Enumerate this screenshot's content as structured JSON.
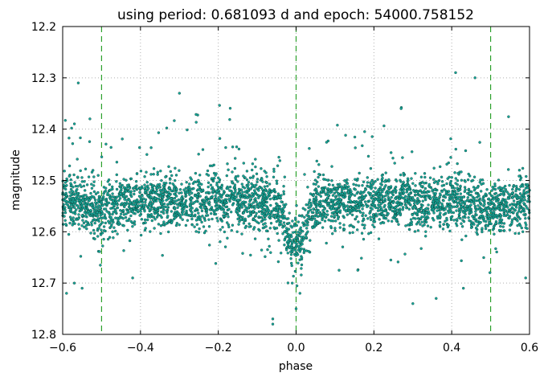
{
  "chart_data": {
    "type": "scatter",
    "title": "using period: 0.681093 d and epoch: 54000.758152",
    "xlabel": "phase",
    "ylabel": "magnitude",
    "xlim": [
      -0.6,
      0.6
    ],
    "ylim": [
      12.8,
      12.2
    ],
    "y_axis_inverted": true,
    "grid": true,
    "x_ticks": [
      -0.6,
      -0.4,
      -0.2,
      0.0,
      0.2,
      0.4,
      0.6
    ],
    "x_tick_labels": [
      "−0.6",
      "−0.4",
      "−0.2",
      "0.0",
      "0.2",
      "0.4",
      "0.6"
    ],
    "y_ticks": [
      12.2,
      12.3,
      12.4,
      12.5,
      12.6,
      12.7,
      12.8
    ],
    "y_tick_labels": [
      "12.2",
      "12.3",
      "12.4",
      "12.5",
      "12.6",
      "12.7",
      "12.8"
    ],
    "vertical_lines": [
      {
        "x": -0.5,
        "style": "dashed",
        "color": "#2ca02c"
      },
      {
        "x": 0.0,
        "style": "dashed",
        "color": "#2ca02c"
      },
      {
        "x": 0.5,
        "style": "dashed",
        "color": "#2ca02c"
      }
    ],
    "marker_color": "#17a89a",
    "marker_edge_color": "#0b3b33",
    "series_description": "light curve, baseline magnitude ~12.54, scatter ~0.03 mag, primary dip at phase 0 reaching ~12.63",
    "points": [
      [
        -0.58,
        12.53
      ],
      [
        -0.55,
        12.55
      ],
      [
        -0.52,
        12.51
      ],
      [
        -0.5,
        12.56
      ],
      [
        -0.47,
        12.54
      ],
      [
        -0.44,
        12.52
      ],
      [
        -0.41,
        12.55
      ],
      [
        -0.38,
        12.53
      ],
      [
        -0.35,
        12.54
      ],
      [
        -0.32,
        12.52
      ],
      [
        -0.29,
        12.56
      ],
      [
        -0.26,
        12.53
      ],
      [
        -0.23,
        12.54
      ],
      [
        -0.2,
        12.55
      ],
      [
        -0.17,
        12.53
      ],
      [
        -0.14,
        12.55
      ],
      [
        -0.11,
        12.56
      ],
      [
        -0.08,
        12.57
      ],
      [
        -0.05,
        12.58
      ],
      [
        -0.03,
        12.6
      ],
      [
        -0.01,
        12.62
      ],
      [
        0.0,
        12.63
      ],
      [
        0.01,
        12.62
      ],
      [
        0.03,
        12.6
      ],
      [
        0.05,
        12.58
      ],
      [
        0.08,
        12.56
      ],
      [
        0.11,
        12.55
      ],
      [
        0.14,
        12.54
      ],
      [
        0.17,
        12.53
      ],
      [
        0.2,
        12.54
      ],
      [
        0.23,
        12.53
      ],
      [
        0.26,
        12.55
      ],
      [
        0.29,
        12.54
      ],
      [
        0.32,
        12.52
      ],
      [
        0.35,
        12.55
      ],
      [
        0.38,
        12.53
      ],
      [
        0.41,
        12.54
      ],
      [
        0.44,
        12.55
      ],
      [
        0.47,
        12.53
      ],
      [
        0.5,
        12.56
      ],
      [
        0.53,
        12.52
      ],
      [
        0.56,
        12.54
      ],
      [
        0.58,
        12.53
      ],
      [
        -0.56,
        12.31
      ],
      [
        -0.53,
        12.38
      ],
      [
        0.46,
        12.3
      ],
      [
        0.41,
        12.29
      ],
      [
        -0.3,
        12.33
      ],
      [
        0.27,
        12.36
      ],
      [
        -0.57,
        12.7
      ],
      [
        -0.55,
        12.71
      ],
      [
        -0.42,
        12.69
      ],
      [
        0.3,
        12.74
      ],
      [
        0.36,
        12.73
      ],
      [
        0.43,
        12.71
      ],
      [
        -0.06,
        12.78
      ],
      [
        -0.06,
        12.77
      ],
      [
        0.0,
        12.75
      ],
      [
        0.01,
        12.72
      ],
      [
        -0.01,
        12.7
      ],
      [
        -0.59,
        12.72
      ],
      [
        0.59,
        12.69
      ]
    ]
  }
}
